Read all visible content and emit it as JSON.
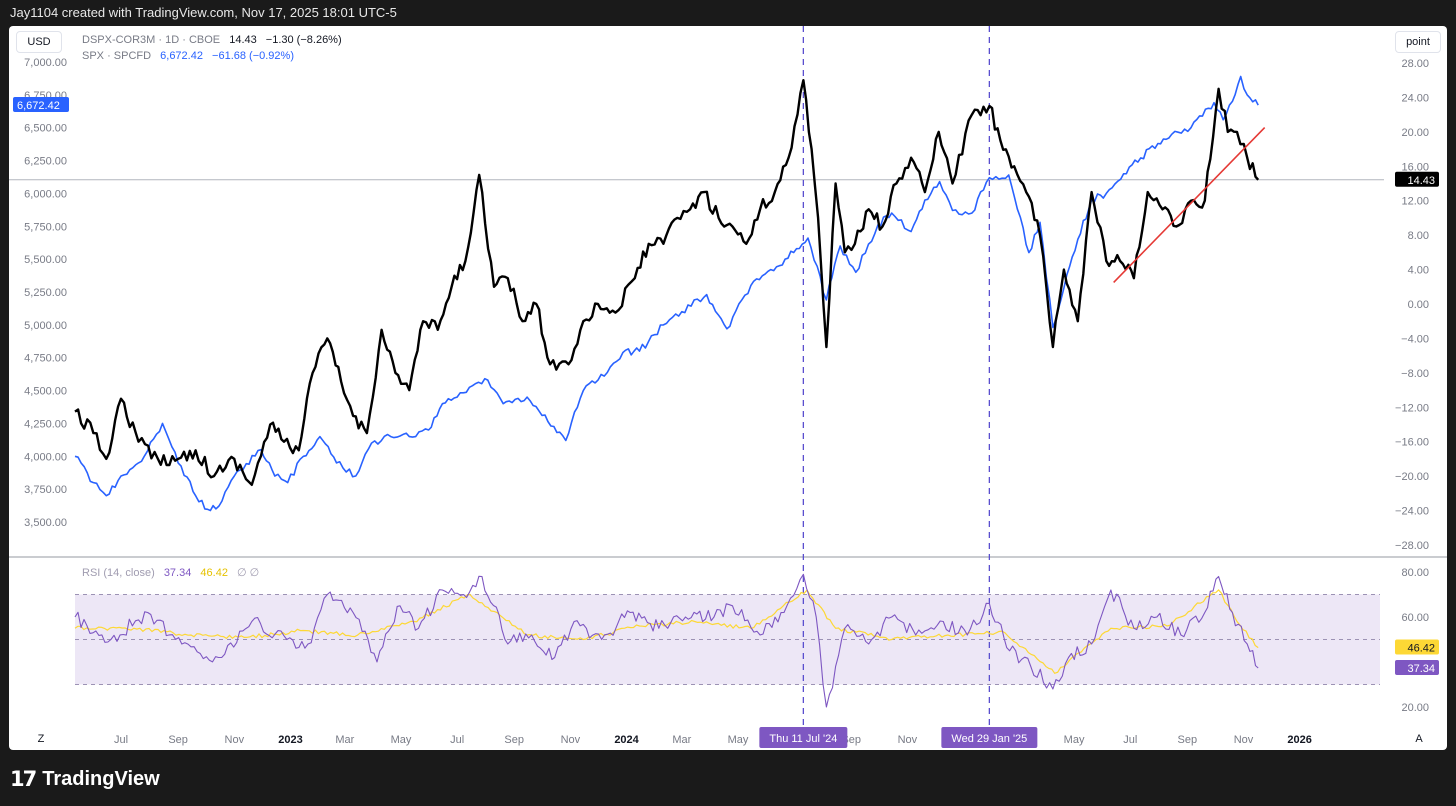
{
  "header": {
    "caption": "Jay1104 created with TradingView.com, Nov 17, 2025 18:01 UTC-5"
  },
  "footer": {
    "logo_text": "TradingView",
    "logo_mark": "17"
  },
  "toolbar": {
    "currency_button": "USD",
    "scale_button": "point",
    "z_button": "Z",
    "a_button": "A"
  },
  "legend": {
    "main": {
      "name": "DSPX-COR3M · 1D · CBOE",
      "value": "14.43",
      "change": "−1.30 (−8.26%)"
    },
    "spx": {
      "name": "SPX · SPCFD",
      "value": "6,672.42",
      "change": "−61.68 (−0.92%)"
    },
    "rsi": {
      "name": "RSI (14, close)",
      "value": "37.34",
      "ma_value": "46.42",
      "tail": "∅  ∅"
    }
  },
  "badges": {
    "spx_last": "6,672.42",
    "main_last": "14.43",
    "rsi_ma_last": "46.42",
    "rsi_last": "37.34"
  },
  "crosshair_labels": [
    "Thu 11 Jul '24",
    "Wed 29 Jan '25"
  ],
  "colors": {
    "main": "#000000",
    "spx": "#2962ff",
    "rsi": "#7e57c2",
    "rsi_ma": "#fdd835",
    "trend": "#e53935",
    "rsi_band": "#ede7f6",
    "badge_purple": "#7e57c2",
    "badge_yellow": "#fdd835"
  },
  "chart_data": [
    {
      "type": "line",
      "title": "DSPX-COR3M / SPX",
      "x_tick_labels": [
        "Jul",
        "Sep",
        "Nov",
        "2023",
        "Mar",
        "May",
        "Jul",
        "Sep",
        "Nov",
        "2024",
        "Mar",
        "May",
        "Jul",
        "Sep",
        "Nov",
        "2025",
        "May",
        "Jul",
        "Sep",
        "Nov",
        "2026"
      ],
      "x_tick_dates": [
        "2022-07-01",
        "2022-09-01",
        "2022-11-01",
        "2023-01-01",
        "2023-03-01",
        "2023-05-01",
        "2023-07-01",
        "2023-09-01",
        "2023-11-01",
        "2024-01-01",
        "2024-03-01",
        "2024-05-01",
        "2024-07-01",
        "2024-09-01",
        "2024-11-01",
        "2025-01-01",
        "2025-05-01",
        "2025-07-01",
        "2025-09-01",
        "2025-11-01",
        "2026-01-01"
      ],
      "xlim": [
        "2022-05-12",
        "2026-01-22"
      ],
      "left_axis": {
        "ticks": [
          "7,000.00",
          "6,750.00",
          "6,500.00",
          "6,250.00",
          "6,000.00",
          "5,750.00",
          "5,500.00",
          "5,250.00",
          "5,000.00",
          "4,750.00",
          "4,500.00",
          "4,250.00",
          "4,000.00",
          "3,750.00",
          "3,500.00"
        ],
        "ylim": [
          3400,
          7100
        ]
      },
      "right_axis": {
        "ticks": [
          "28.00",
          "24.00",
          "20.00",
          "16.00",
          "12.00",
          "8.00",
          "4.00",
          "0.00",
          "−4.00",
          "−8.00",
          "−12.00",
          "−16.00",
          "−20.00",
          "−24.00",
          "−28.00"
        ],
        "ylim": [
          -30,
          30
        ]
      },
      "series": [
        {
          "name": "DSPX-COR3M",
          "axis": "right",
          "x": [
            "2022-05-12",
            "2022-06-01",
            "2022-06-15",
            "2022-07-01",
            "2022-07-20",
            "2022-08-10",
            "2022-09-01",
            "2022-09-20",
            "2022-10-10",
            "2022-11-01",
            "2022-11-20",
            "2022-12-10",
            "2022-12-25",
            "2023-01-10",
            "2023-01-25",
            "2023-02-10",
            "2023-02-25",
            "2023-03-10",
            "2023-03-25",
            "2023-04-10",
            "2023-04-25",
            "2023-05-10",
            "2023-05-25",
            "2023-06-10",
            "2023-06-25",
            "2023-07-10",
            "2023-07-25",
            "2023-08-10",
            "2023-08-25",
            "2023-09-10",
            "2023-09-25",
            "2023-10-10",
            "2023-10-30",
            "2023-11-15",
            "2023-12-01",
            "2023-12-20",
            "2024-01-10",
            "2024-01-25",
            "2024-02-10",
            "2024-02-25",
            "2024-03-10",
            "2024-03-25",
            "2024-04-10",
            "2024-04-25",
            "2024-05-10",
            "2024-05-25",
            "2024-06-10",
            "2024-06-25",
            "2024-07-11",
            "2024-07-20",
            "2024-07-27",
            "2024-08-05",
            "2024-08-15",
            "2024-08-25",
            "2024-09-05",
            "2024-09-20",
            "2024-10-05",
            "2024-10-20",
            "2024-11-05",
            "2024-11-20",
            "2024-12-05",
            "2024-12-20",
            "2025-01-10",
            "2025-01-29",
            "2025-02-10",
            "2025-02-25",
            "2025-03-10",
            "2025-03-25",
            "2025-04-08",
            "2025-04-20",
            "2025-05-05",
            "2025-05-20",
            "2025-06-05",
            "2025-06-20",
            "2025-07-05",
            "2025-07-20",
            "2025-08-05",
            "2025-08-20",
            "2025-09-05",
            "2025-09-20",
            "2025-10-05",
            "2025-10-15",
            "2025-10-25",
            "2025-11-05",
            "2025-11-17"
          ],
          "y": [
            -12.5,
            -15,
            -18,
            -11,
            -16,
            -18,
            -18,
            -17,
            -20,
            -18,
            -21,
            -14,
            -16,
            -17,
            -8,
            -4,
            -9,
            -13,
            -15,
            -3,
            -8,
            -10,
            -2,
            -3,
            2,
            5,
            15,
            2,
            3,
            -2,
            0,
            -7,
            -7,
            -2,
            0,
            -1,
            3,
            7,
            7,
            10,
            11,
            13,
            10,
            9,
            7,
            11,
            13,
            17,
            26,
            18,
            10,
            -5,
            14,
            6,
            7,
            11,
            9,
            14,
            17,
            13,
            20,
            14,
            22,
            23,
            19,
            16,
            13,
            8,
            -5,
            4,
            -2,
            13,
            5,
            5,
            3,
            13,
            11,
            9,
            12,
            12,
            25,
            20,
            20,
            17,
            14.43
          ]
        },
        {
          "name": "SPX",
          "axis": "left",
          "x": [
            "2022-05-12",
            "2022-06-01",
            "2022-06-15",
            "2022-07-01",
            "2022-07-20",
            "2022-08-15",
            "2022-09-01",
            "2022-09-30",
            "2022-10-12",
            "2022-11-01",
            "2022-11-30",
            "2022-12-15",
            "2022-12-29",
            "2023-01-15",
            "2023-02-02",
            "2023-02-20",
            "2023-03-13",
            "2023-03-30",
            "2023-04-20",
            "2023-05-10",
            "2023-05-31",
            "2023-06-15",
            "2023-07-01",
            "2023-07-31",
            "2023-08-20",
            "2023-09-15",
            "2023-10-27",
            "2023-11-15",
            "2023-12-01",
            "2023-12-28",
            "2024-01-15",
            "2024-02-10",
            "2024-03-01",
            "2024-03-28",
            "2024-04-19",
            "2024-05-15",
            "2024-06-15",
            "2024-07-16",
            "2024-08-05",
            "2024-08-20",
            "2024-09-06",
            "2024-09-30",
            "2024-10-15",
            "2024-11-05",
            "2024-11-20",
            "2024-12-06",
            "2024-12-20",
            "2025-01-10",
            "2025-01-29",
            "2025-02-19",
            "2025-03-13",
            "2025-03-25",
            "2025-04-08",
            "2025-04-20",
            "2025-05-05",
            "2025-05-20",
            "2025-06-05",
            "2025-06-30",
            "2025-07-31",
            "2025-08-15",
            "2025-09-05",
            "2025-09-30",
            "2025-10-10",
            "2025-10-20",
            "2025-10-29",
            "2025-11-05",
            "2025-11-17"
          ],
          "y": [
            4000,
            3800,
            3700,
            3850,
            3950,
            4250,
            3950,
            3600,
            3600,
            3850,
            4050,
            3850,
            3800,
            4000,
            4150,
            3950,
            3850,
            4100,
            4150,
            4150,
            4200,
            4400,
            4450,
            4590,
            4400,
            4450,
            4120,
            4500,
            4580,
            4790,
            4800,
            5000,
            5100,
            5230,
            4970,
            5300,
            5450,
            5660,
            5190,
            5600,
            5400,
            5760,
            5850,
            5710,
            5950,
            6090,
            5870,
            5850,
            6120,
            6140,
            5550,
            5780,
            4980,
            5280,
            5650,
            5950,
            6000,
            6200,
            6380,
            6450,
            6500,
            6690,
            6560,
            6700,
            6890,
            6750,
            6672.42
          ]
        }
      ],
      "trendline": {
        "color": "red",
        "from": {
          "x": "2025-06-13",
          "y": 2.5
        },
        "to": {
          "x": "2025-11-24",
          "y": 20.5
        }
      },
      "last_value_line": 14.43,
      "vertical_markers": [
        "2024-07-11",
        "2025-01-29"
      ],
      "grid": false
    },
    {
      "type": "line",
      "title": "RSI (14, close)",
      "ylim": [
        15,
        85
      ],
      "yticks": [
        "80.00",
        "60.00",
        "20.00"
      ],
      "band": [
        30,
        70
      ],
      "midline": 50,
      "series": [
        {
          "name": "RSI",
          "x": [
            "2022-05-12",
            "2022-06-20",
            "2022-07-30",
            "2022-09-05",
            "2022-10-15",
            "2022-11-20",
            "2022-12-28",
            "2023-01-20",
            "2023-02-10",
            "2023-03-10",
            "2023-04-05",
            "2023-04-30",
            "2023-05-20",
            "2023-06-15",
            "2023-07-08",
            "2023-07-28",
            "2023-08-25",
            "2023-09-20",
            "2023-10-15",
            "2023-11-05",
            "2023-12-05",
            "2024-01-05",
            "2024-02-05",
            "2024-03-05",
            "2024-04-05",
            "2024-04-25",
            "2024-05-25",
            "2024-06-20",
            "2024-07-11",
            "2024-07-25",
            "2024-08-05",
            "2024-08-25",
            "2024-09-20",
            "2024-10-15",
            "2024-11-10",
            "2024-12-10",
            "2025-01-05",
            "2025-01-29",
            "2025-02-20",
            "2025-03-15",
            "2025-04-08",
            "2025-04-25",
            "2025-05-20",
            "2025-06-10",
            "2025-07-05",
            "2025-07-30",
            "2025-08-25",
            "2025-09-20",
            "2025-10-05",
            "2025-10-20",
            "2025-11-05",
            "2025-11-17"
          ],
          "y": [
            60,
            50,
            62,
            48,
            42,
            58,
            50,
            48,
            70,
            62,
            40,
            65,
            55,
            72,
            70,
            78,
            48,
            52,
            42,
            58,
            50,
            62,
            55,
            60,
            60,
            65,
            52,
            62,
            79,
            60,
            20,
            55,
            48,
            60,
            52,
            58,
            52,
            66,
            45,
            38,
            28,
            42,
            48,
            72,
            55,
            60,
            52,
            62,
            78,
            62,
            48,
            37.34
          ]
        },
        {
          "name": "RSI-based MA",
          "x": [
            "2022-05-12",
            "2022-07-15",
            "2022-09-15",
            "2022-11-15",
            "2023-01-15",
            "2023-03-15",
            "2023-05-15",
            "2023-07-15",
            "2023-09-15",
            "2023-11-15",
            "2024-01-15",
            "2024-03-15",
            "2024-05-15",
            "2024-07-15",
            "2024-08-15",
            "2024-10-15",
            "2024-12-15",
            "2025-02-15",
            "2025-04-10",
            "2025-06-10",
            "2025-08-10",
            "2025-10-05",
            "2025-10-25",
            "2025-11-17"
          ],
          "y": [
            55,
            55,
            52,
            51,
            54,
            52,
            58,
            70,
            52,
            50,
            56,
            58,
            55,
            72,
            55,
            50,
            52,
            53,
            35,
            55,
            56,
            72,
            58,
            46.42
          ]
        }
      ]
    }
  ]
}
